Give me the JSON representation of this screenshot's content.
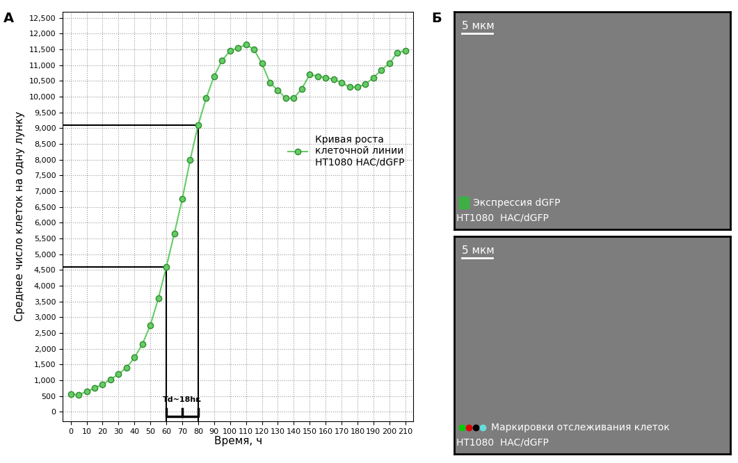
{
  "chart_data": [
    {
      "type": "line",
      "panel_label": "А",
      "x_label": "Время, ч",
      "y_label": "Среднее число клеток на одну лунку",
      "x": [
        0,
        5,
        10,
        15,
        20,
        25,
        30,
        35,
        40,
        45,
        50,
        55,
        60,
        65,
        70,
        75,
        80,
        85,
        90,
        95,
        100,
        105,
        110,
        115,
        120,
        125,
        130,
        135,
        140,
        145,
        150,
        155,
        160,
        165,
        170,
        175,
        180,
        185,
        190,
        195,
        200,
        205,
        210
      ],
      "series": [
        {
          "name": "Кривая роста\nклеточной линии\nHT1080 HAC/dGFP",
          "color": "#66cc66",
          "marker": "o",
          "line_style": "solid",
          "values": [
            560,
            540,
            650,
            750,
            870,
            1030,
            1200,
            1400,
            1720,
            2150,
            2750,
            3600,
            4600,
            5650,
            6750,
            8000,
            9100,
            9950,
            10650,
            11150,
            11450,
            11550,
            11650,
            11500,
            11050,
            10450,
            10200,
            9950,
            9950,
            10250,
            10700,
            10650,
            10600,
            10550,
            10450,
            10300,
            10300,
            10400,
            10600,
            10850,
            11050,
            11400,
            11450
          ]
        }
      ],
      "xlim": [
        -5,
        215
      ],
      "ylim": [
        -300,
        12700
      ],
      "xticks": [
        0,
        10,
        20,
        30,
        40,
        50,
        60,
        70,
        80,
        90,
        100,
        110,
        120,
        130,
        140,
        150,
        160,
        170,
        180,
        190,
        200,
        210
      ],
      "yticks": [
        0,
        500,
        {
          "value": 1000,
          "label": "1,000"
        },
        {
          "value": 1500,
          "label": "1,500"
        },
        {
          "value": 2000,
          "label": "2,000"
        },
        {
          "value": 2500,
          "label": "2,500"
        },
        {
          "value": 3000,
          "label": "3,000"
        },
        {
          "value": 3500,
          "label": "3,500"
        },
        {
          "value": 4000,
          "label": "4,000"
        },
        {
          "value": 4500,
          "label": "4,500"
        },
        {
          "value": 5000,
          "label": "5,000"
        },
        {
          "value": 5500,
          "label": "5,500"
        },
        {
          "value": 6000,
          "label": "6,000"
        },
        {
          "value": 6500,
          "label": "6,500"
        },
        {
          "value": 7000,
          "label": "7,000"
        },
        {
          "value": 7500,
          "label": "7,500"
        },
        {
          "value": 8000,
          "label": "8,000"
        },
        {
          "value": 8500,
          "label": "8,500"
        },
        {
          "value": 9000,
          "label": "9,000"
        },
        {
          "value": 9500,
          "label": "9,500"
        },
        {
          "value": 10000,
          "label": "10,000"
        },
        {
          "value": 10500,
          "label": "10,500"
        },
        {
          "value": 11000,
          "label": "11,000"
        },
        {
          "value": 11500,
          "label": "11,500"
        },
        {
          "value": 12000,
          "label": "12,000"
        },
        {
          "value": 12500,
          "label": "12,500"
        }
      ],
      "grid": true,
      "legend": "center right",
      "reference_points": [
        {
          "x": 60,
          "y": 4600
        },
        {
          "x": 80,
          "y": 9100
        }
      ],
      "annotations": [
        {
          "text": "Td~18hr.",
          "x_start": 60,
          "x_end": 80
        }
      ]
    },
    {
      "type": "image",
      "panel_label": "Б",
      "scale_bar": "5 мкм",
      "legend_text": "Экспрессия dGFP",
      "legend_colors": [
        "#3cb043"
      ],
      "caption": "HT1080  HAC/dGFP"
    },
    {
      "type": "image",
      "scale_bar": "5 мкм",
      "legend_text": "Маркировки отслеживания клеток",
      "legend_colors": [
        "#00cc00",
        "#dd0000",
        "#000000",
        "#66dddd"
      ],
      "caption": "HT1080  HAC/dGFP"
    }
  ]
}
